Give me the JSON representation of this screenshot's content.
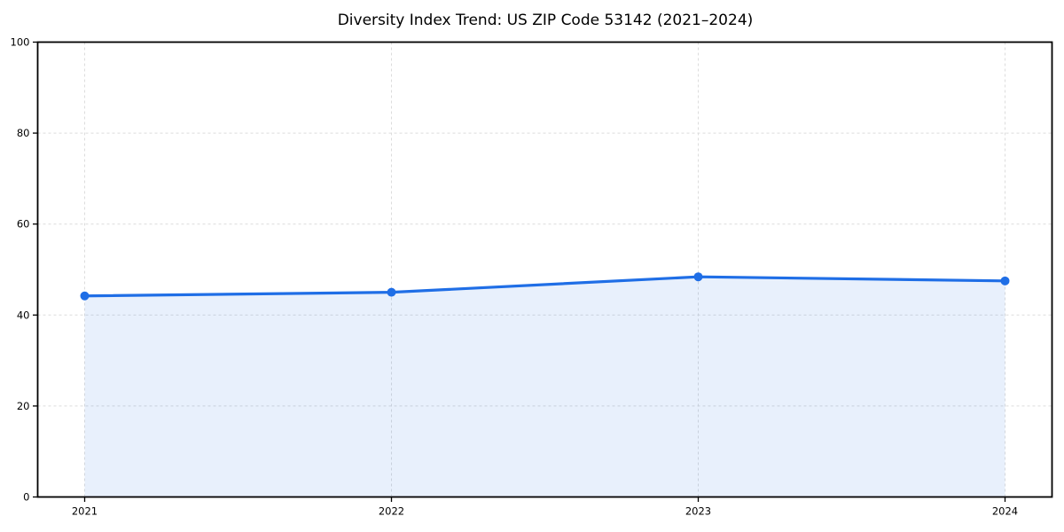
{
  "chart_data": {
    "type": "line",
    "title": "Diversity Index Trend: US ZIP Code 53142 (2021–2024)",
    "categories": [
      "2021",
      "2022",
      "2023",
      "2024"
    ],
    "series": [
      {
        "name": "Diversity Index",
        "values": [
          44.2,
          45.0,
          48.4,
          47.5
        ]
      }
    ],
    "xlabel": "",
    "ylabel": "",
    "ylim": [
      0,
      100
    ],
    "yticks": [
      0,
      20,
      40,
      60,
      80,
      100
    ],
    "grid": true,
    "grid_style": "dashed",
    "legend": "none",
    "area_fill": true,
    "marker": "circle",
    "colors": {
      "line": "#1f6ee6",
      "fill": "#1f6ee6",
      "fill_opacity": 0.1,
      "grid": "#dcdcdc",
      "axis": "#000000",
      "text": "#000000",
      "background": "#ffffff"
    }
  }
}
